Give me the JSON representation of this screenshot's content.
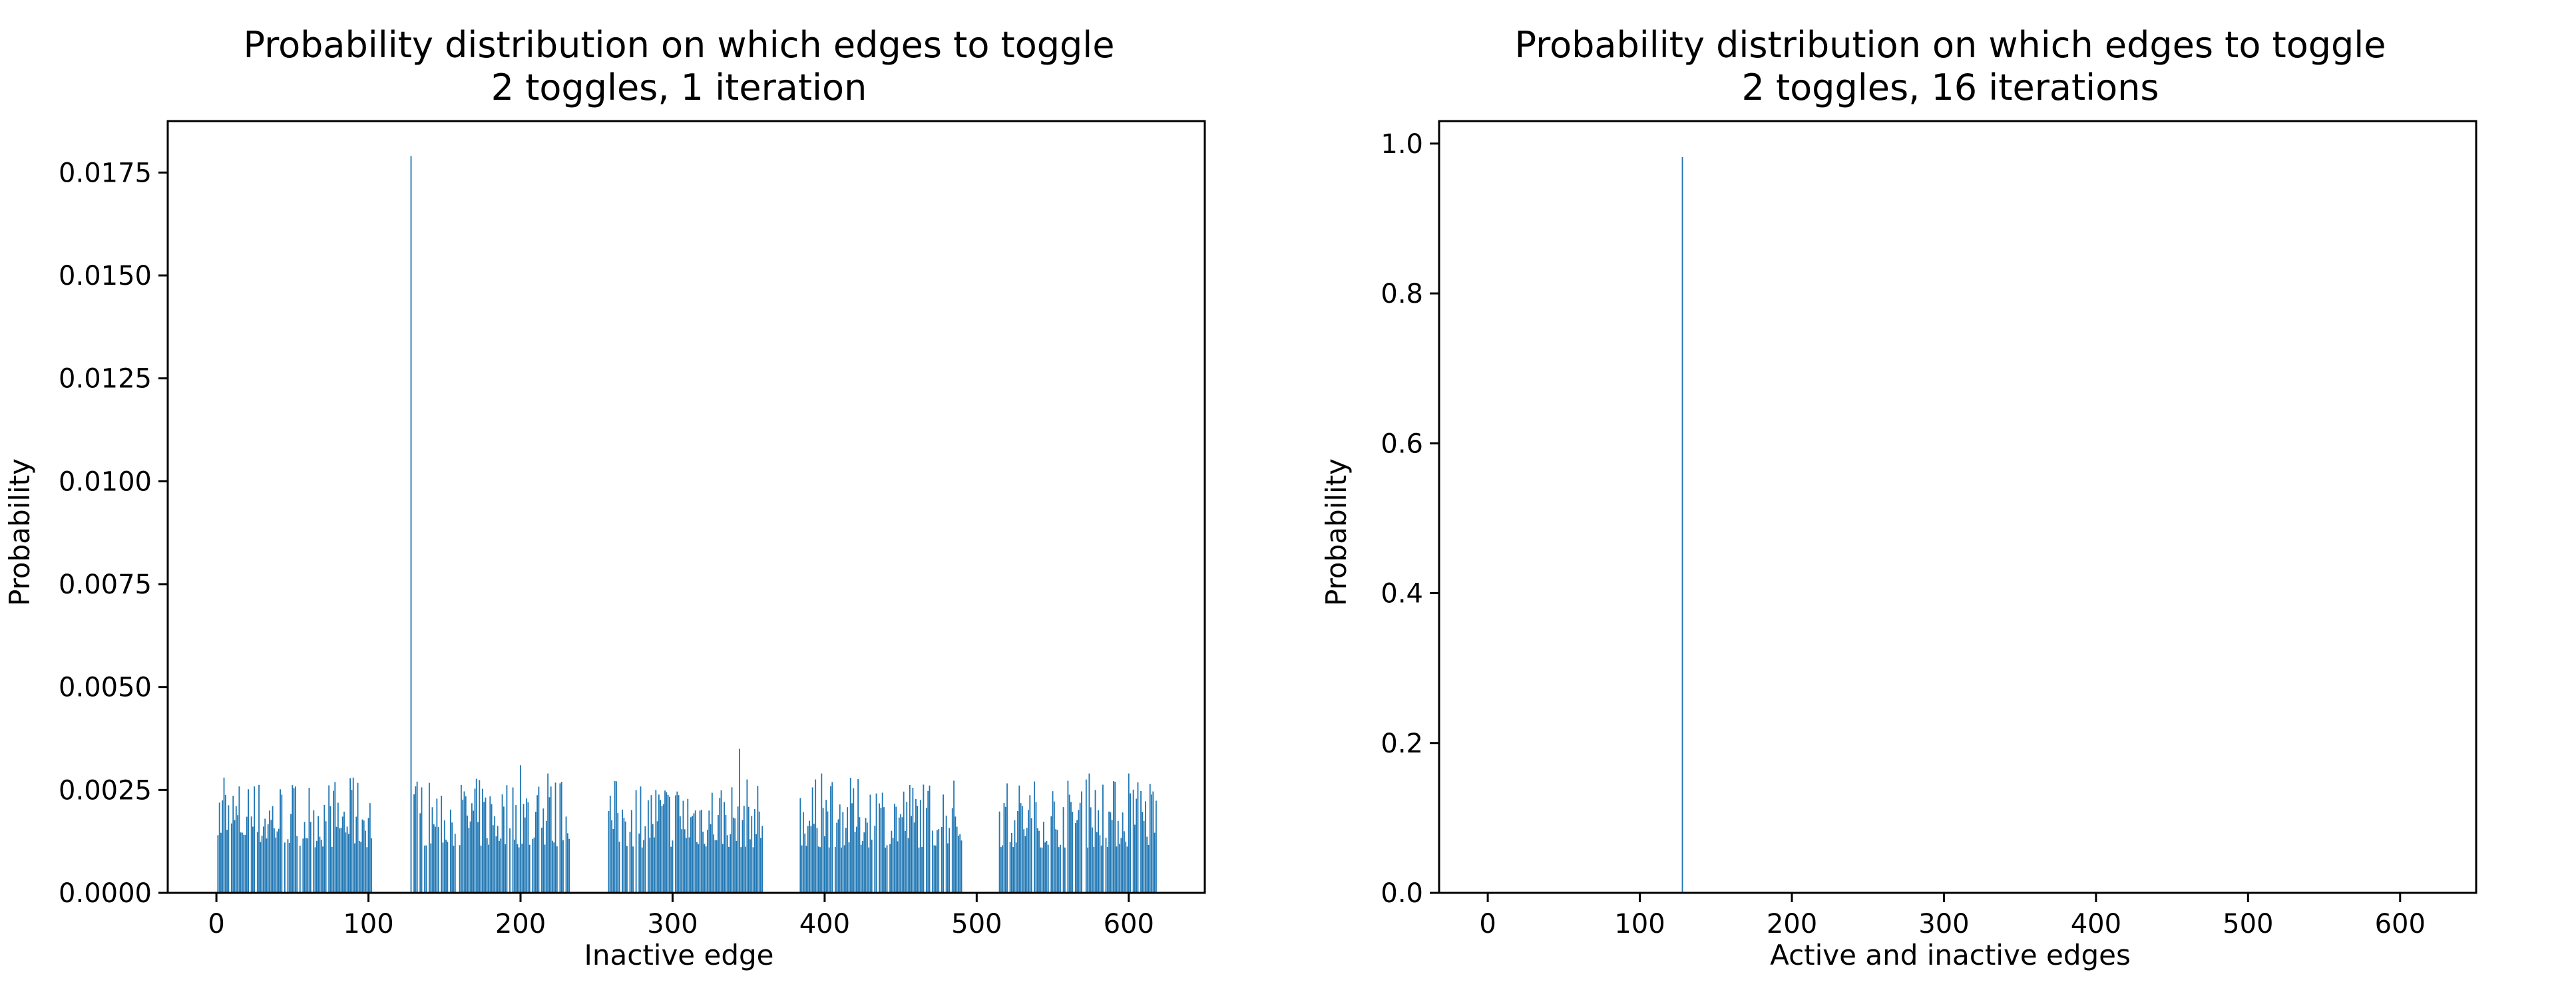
{
  "charts": [
    {
      "type": "bar",
      "title": "Probability distribution on which edges to toggle",
      "subtitle": "2 toggles, 1 iteration",
      "xlabel": "Inactive edge",
      "ylabel": "Probability",
      "xlim": [
        -32,
        650
      ],
      "ylim": [
        0,
        0.01875
      ],
      "x_ticks": [
        0,
        100,
        200,
        300,
        400,
        500,
        600
      ],
      "x_tick_labels": [
        "0",
        "100",
        "200",
        "300",
        "400",
        "500",
        "600"
      ],
      "y_ticks": [
        0,
        0.0025,
        0.005,
        0.0075,
        0.01,
        0.0125,
        0.015,
        0.0175
      ],
      "y_tick_labels": [
        "0.0000",
        "0.0025",
        "0.0050",
        "0.0075",
        "0.0100",
        "0.0125",
        "0.0150",
        "0.0175"
      ],
      "color": "#1f77b4",
      "grid": false,
      "x_segments": [
        [
          0,
          102
        ],
        [
          128,
          232
        ],
        [
          256,
          360
        ],
        [
          384,
          490
        ],
        [
          514,
          618
        ]
      ],
      "typical_value_range": [
        0.0011,
        0.0028
      ],
      "peaks": [
        {
          "x": 128,
          "value": 0.0179
        },
        {
          "x": 5,
          "value": 0.0028
        },
        {
          "x": 90,
          "value": 0.0028
        },
        {
          "x": 200,
          "value": 0.0031
        },
        {
          "x": 218,
          "value": 0.0029
        },
        {
          "x": 344,
          "value": 0.0035
        },
        {
          "x": 356,
          "value": 0.0026
        },
        {
          "x": 398,
          "value": 0.0029
        },
        {
          "x": 574,
          "value": 0.0029
        },
        {
          "x": 600,
          "value": 0.0029
        }
      ]
    },
    {
      "type": "bar",
      "title": "Probability distribution on which edges to toggle",
      "subtitle": "2 toggles, 16 iterations",
      "xlabel": "Active and inactive edges",
      "ylabel": "Probability",
      "xlim": [
        -32,
        650
      ],
      "ylim": [
        0,
        1.03
      ],
      "x_ticks": [
        0,
        100,
        200,
        300,
        400,
        500,
        600
      ],
      "x_tick_labels": [
        "0",
        "100",
        "200",
        "300",
        "400",
        "500",
        "600"
      ],
      "y_ticks": [
        0,
        0.2,
        0.4,
        0.6,
        0.8,
        1.0
      ],
      "y_tick_labels": [
        "0.0",
        "0.2",
        "0.4",
        "0.6",
        "0.8",
        "1.0"
      ],
      "color": "#1f77b4",
      "grid": false,
      "peaks": [
        {
          "x": 128,
          "value": 0.982
        }
      ]
    }
  ]
}
